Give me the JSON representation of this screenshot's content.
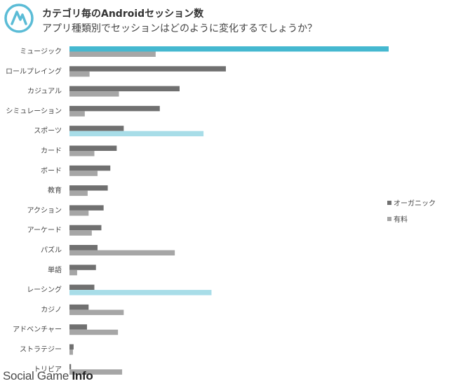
{
  "chart_data": {
    "type": "bar",
    "orientation": "horizontal",
    "title": "カテゴリ毎のAndroidセッション数",
    "subtitle": "アプリ種類別でセッションはどのように変化するでしょうか？",
    "categories": [
      "ミュージック",
      "ロールプレイング",
      "カジュアル",
      "シミュレーション",
      "スポーツ",
      "カード",
      "ボード",
      "教育",
      "アクション",
      "アーケード",
      "パズル",
      "単語",
      "レーシング",
      "カジノ",
      "アドベンチャー",
      "ストラテジー",
      "トリビア"
    ],
    "series": [
      {
        "name": "オーガニック",
        "color": "#707070",
        "values": [
          100,
          49,
          34.5,
          28.3,
          17,
          14.8,
          12.8,
          12,
          10.7,
          10,
          8.8,
          8.3,
          7.8,
          6,
          5.5,
          1.3,
          0.5
        ]
      },
      {
        "name": "有料",
        "color": "#a6a6a6",
        "values": [
          27,
          6.3,
          15.5,
          4.8,
          42,
          7.8,
          8.8,
          5.7,
          6,
          7,
          33,
          2.4,
          44.5,
          17,
          15.2,
          1.1,
          16.5
        ]
      }
    ],
    "highlight_color": "#45b8d0",
    "highlight_light_color": "#a8dde8",
    "xlim": [
      0,
      100
    ],
    "grid": false,
    "legend_position": "right"
  },
  "watermark": {
    "part1": "Social Game ",
    "part2": "Info"
  },
  "logo_icon": "app-logo-icon"
}
